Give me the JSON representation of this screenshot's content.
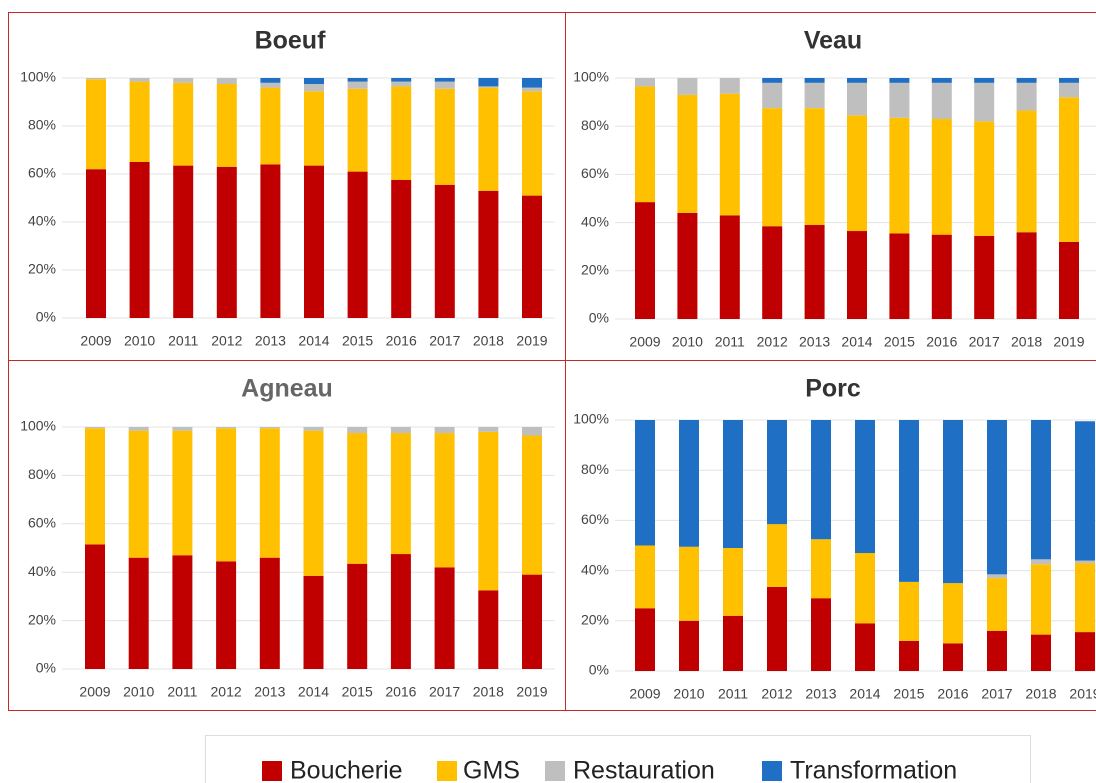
{
  "chart_data": [
    {
      "type": "stacked_bar",
      "title": "Boeuf",
      "categories": [
        "2009",
        "2010",
        "2011",
        "2012",
        "2013",
        "2014",
        "2015",
        "2016",
        "2017",
        "2018",
        "2019"
      ],
      "series": [
        {
          "name": "Boucherie",
          "color": "#c00000",
          "values": [
            62,
            65,
            63.5,
            63,
            64,
            63.5,
            61,
            57.5,
            55.5,
            53,
            51
          ]
        },
        {
          "name": "GMS",
          "color": "#ffc000",
          "values": [
            37.5,
            33.5,
            34.5,
            34.5,
            32,
            31,
            34.5,
            39,
            40,
            43,
            43.5
          ]
        },
        {
          "name": "Restauration",
          "color": "#bfbfbf",
          "values": [
            0.5,
            1.5,
            2,
            2.5,
            2,
            3,
            3,
            2,
            3,
            0.5,
            1.5
          ]
        },
        {
          "name": "Transformation",
          "color": "#1f6fc4",
          "values": [
            0,
            0,
            0,
            0,
            2,
            2.5,
            1.5,
            1.5,
            1.5,
            3.5,
            4
          ]
        }
      ],
      "ylim": [
        0,
        100
      ],
      "yticks": [
        {
          "value": 0,
          "label": "0%"
        },
        {
          "value": 20,
          "label": "20%"
        },
        {
          "value": 40,
          "label": "40%"
        },
        {
          "value": 60,
          "label": "60%"
        },
        {
          "value": 80,
          "label": "80%"
        },
        {
          "value": 100,
          "label": "100%"
        }
      ],
      "grid": true
    },
    {
      "type": "stacked_bar",
      "title": "Veau",
      "categories": [
        "2009",
        "2010",
        "2011",
        "2012",
        "2013",
        "2014",
        "2015",
        "2016",
        "2017",
        "2018",
        "2019"
      ],
      "series": [
        {
          "name": "Boucherie",
          "color": "#c00000",
          "values": [
            48.5,
            44,
            43,
            38.5,
            39,
            36.5,
            35.5,
            35,
            34.5,
            36,
            32
          ]
        },
        {
          "name": "GMS",
          "color": "#ffc000",
          "values": [
            48,
            49,
            50.5,
            49,
            48.5,
            48,
            48,
            48,
            47.5,
            50.5,
            60
          ]
        },
        {
          "name": "Restauration",
          "color": "#bfbfbf",
          "values": [
            3.5,
            7,
            6.5,
            10.5,
            10.5,
            13.5,
            14.5,
            15,
            16,
            11.5,
            6
          ]
        },
        {
          "name": "Transformation",
          "color": "#1f6fc4",
          "values": [
            0,
            0,
            0,
            2,
            2,
            2,
            2,
            2,
            2,
            2,
            2
          ]
        }
      ],
      "ylim": [
        0,
        100
      ],
      "yticks": [
        {
          "value": 0,
          "label": "0%"
        },
        {
          "value": 20,
          "label": "20%"
        },
        {
          "value": 40,
          "label": "40%"
        },
        {
          "value": 60,
          "label": "60%"
        },
        {
          "value": 80,
          "label": "80%"
        },
        {
          "value": 100,
          "label": "100%"
        }
      ],
      "grid": true
    },
    {
      "type": "stacked_bar",
      "title": "Agneau",
      "categories": [
        "2009",
        "2010",
        "2011",
        "2012",
        "2013",
        "2014",
        "2015",
        "2016",
        "2017",
        "2018",
        "2019"
      ],
      "series": [
        {
          "name": "Boucherie",
          "color": "#c00000",
          "values": [
            51.5,
            46,
            47,
            44.5,
            46,
            38.5,
            43.5,
            47.5,
            42,
            32.5,
            39
          ]
        },
        {
          "name": "GMS",
          "color": "#ffc000",
          "values": [
            48,
            52.5,
            51.5,
            55,
            53.5,
            60,
            54,
            50,
            55.5,
            65.5,
            57.5
          ]
        },
        {
          "name": "Restauration",
          "color": "#bfbfbf",
          "values": [
            0.5,
            1.5,
            1.5,
            0.5,
            0.5,
            1.5,
            2.5,
            2.5,
            2.5,
            2,
            3.5
          ]
        },
        {
          "name": "Transformation",
          "color": "#1f6fc4",
          "values": [
            0,
            0,
            0,
            0,
            0,
            0,
            0,
            0,
            0,
            0,
            0
          ]
        }
      ],
      "ylim": [
        0,
        100
      ],
      "yticks": [
        {
          "value": 0,
          "label": "0%"
        },
        {
          "value": 20,
          "label": "20%"
        },
        {
          "value": 40,
          "label": "40%"
        },
        {
          "value": 60,
          "label": "60%"
        },
        {
          "value": 80,
          "label": "80%"
        },
        {
          "value": 100,
          "label": "100%"
        }
      ],
      "grid": true
    },
    {
      "type": "stacked_bar",
      "title": "Porc",
      "categories": [
        "2009",
        "2010",
        "2011",
        "2012",
        "2013",
        "2014",
        "2015",
        "2016",
        "2017",
        "2018",
        "2019"
      ],
      "series": [
        {
          "name": "Boucherie",
          "color": "#c00000",
          "values": [
            25,
            20,
            22,
            33.5,
            29,
            19,
            12,
            11,
            16,
            14.5,
            15.5
          ]
        },
        {
          "name": "GMS",
          "color": "#ffc000",
          "values": [
            25,
            29.5,
            27,
            25,
            23.5,
            28,
            23.5,
            24,
            21,
            28,
            27.5
          ]
        },
        {
          "name": "Restauration",
          "color": "#bfbfbf",
          "values": [
            0,
            0,
            0,
            0,
            0,
            0,
            0,
            0,
            1.5,
            2,
            1
          ]
        },
        {
          "name": "Transformation",
          "color": "#1f6fc4",
          "values": [
            50,
            50.5,
            51,
            41.5,
            47.5,
            53,
            64.5,
            65,
            61.5,
            55.5,
            55.5
          ]
        }
      ],
      "ylim": [
        0,
        100
      ],
      "yticks": [
        {
          "value": 0,
          "label": "0%"
        },
        {
          "value": 20,
          "label": "20%"
        },
        {
          "value": 40,
          "label": "40%"
        },
        {
          "value": 60,
          "label": "60%"
        },
        {
          "value": 80,
          "label": "80%"
        },
        {
          "value": 100,
          "label": "100%"
        }
      ],
      "grid": true
    }
  ]
}
